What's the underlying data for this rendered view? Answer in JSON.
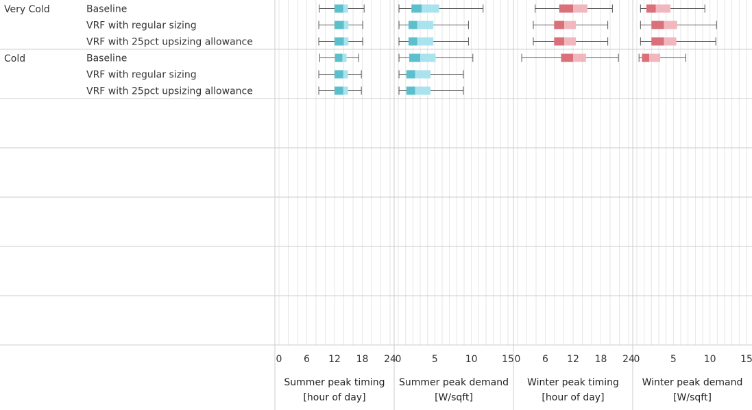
{
  "chart_data": {
    "type": "boxplot",
    "panels": [
      {
        "key": "summer_timing",
        "title_lines": [
          "Summer peak timing",
          "[hour of day]"
        ],
        "xlim": [
          0,
          24
        ],
        "ticks": [
          0,
          6,
          12,
          18,
          24
        ],
        "palette": "cyan"
      },
      {
        "key": "summer_demand",
        "title_lines": [
          "Summer peak demand",
          "[W/sqft]"
        ],
        "xlim": [
          0,
          15
        ],
        "ticks": [
          0,
          5,
          10,
          15
        ],
        "palette": "cyan"
      },
      {
        "key": "winter_timing",
        "title_lines": [
          "Winter peak timing",
          "[hour of day]"
        ],
        "xlim": [
          0,
          24
        ],
        "ticks": [
          0,
          6,
          12,
          18,
          24
        ],
        "palette": "red"
      },
      {
        "key": "winter_demand",
        "title_lines": [
          "Winter peak demand",
          "[W/sqft]"
        ],
        "xlim": [
          0,
          15
        ],
        "ticks": [
          0,
          5,
          10,
          15
        ],
        "palette": "red"
      }
    ],
    "colors": {
      "cyan_dark": "#5bbfcc",
      "cyan_light": "#a9e3ee",
      "red_dark": "#d9707a",
      "red_light": "#f2b7be",
      "whisker": "#555555",
      "grid": "#e6e6e6",
      "divider": "#cccccc"
    },
    "groups": [
      {
        "zone": "Very Cold",
        "rows": [
          {
            "scenario": "Baseline",
            "summer_timing": [
              8.7,
              12.0,
              13.9,
              14.9,
              18.4
            ],
            "summer_demand": [
              0.1,
              1.8,
              3.2,
              5.6,
              11.6
            ],
            "winter_timing": [
              3.8,
              9.0,
              12.0,
              15.1,
              20.5
            ],
            "winter_demand": [
              0.5,
              1.3,
              2.6,
              4.6,
              9.3
            ]
          },
          {
            "scenario": "VRF with regular sizing",
            "summer_timing": [
              8.6,
              12.0,
              14.0,
              15.0,
              18.1
            ],
            "summer_demand": [
              0.1,
              1.4,
              2.6,
              4.8,
              9.6
            ],
            "winter_timing": [
              3.4,
              7.9,
              10.1,
              12.6,
              19.5
            ],
            "winter_demand": [
              0.5,
              2.0,
              3.7,
              5.5,
              10.9
            ]
          },
          {
            "scenario": "VRF with 25pct upsizing allowance",
            "summer_timing": [
              8.6,
              12.0,
              14.0,
              15.0,
              18.1
            ],
            "summer_demand": [
              0.1,
              1.4,
              2.6,
              4.8,
              9.6
            ],
            "winter_timing": [
              3.4,
              7.9,
              10.1,
              12.6,
              19.5
            ],
            "winter_demand": [
              0.5,
              2.0,
              3.7,
              5.4,
              10.8
            ]
          }
        ]
      },
      {
        "zone": "Cold",
        "rows": [
          {
            "scenario": "Baseline",
            "summer_timing": [
              8.8,
              12.1,
              13.7,
              14.6,
              17.2
            ],
            "summer_demand": [
              0.1,
              1.5,
              3.0,
              5.1,
              10.2
            ],
            "winter_timing": [
              0.9,
              9.4,
              12.0,
              14.8,
              21.8
            ],
            "winter_demand": [
              0.3,
              0.7,
              1.7,
              3.2,
              6.7
            ]
          },
          {
            "scenario": "VRF with regular sizing",
            "summer_timing": [
              8.6,
              12.0,
              13.9,
              14.9,
              17.8
            ],
            "summer_demand": [
              0.1,
              1.1,
              2.3,
              4.4,
              8.9
            ]
          },
          {
            "scenario": "VRF with 25pct upsizing allowance",
            "summer_timing": [
              8.6,
              12.0,
              13.9,
              14.9,
              17.8
            ],
            "summer_demand": [
              0.1,
              1.1,
              2.3,
              4.4,
              8.9
            ]
          }
        ]
      }
    ]
  }
}
